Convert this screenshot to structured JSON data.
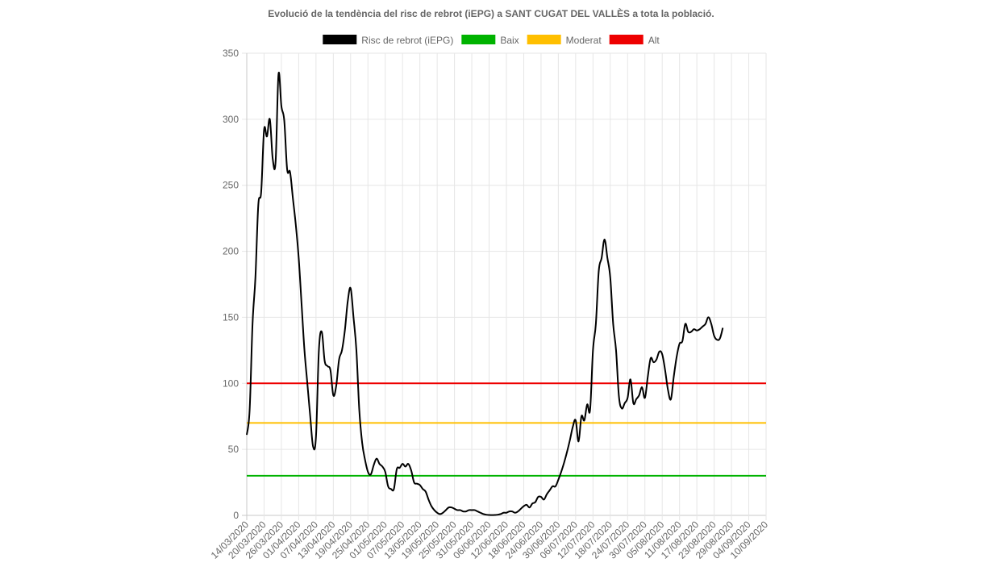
{
  "chart_data": {
    "type": "line",
    "title": "Evolució de la tendència del risc de rebrot (iEPG) a SANT CUGAT DEL VALLÈS a tota la població.",
    "xlabel": "",
    "ylabel": "",
    "ylim": [
      0,
      350
    ],
    "yticks": [
      0,
      50,
      100,
      150,
      200,
      250,
      300,
      350
    ],
    "x_tick_labels": [
      "14/03/2020",
      "20/03/2020",
      "26/03/2020",
      "01/04/2020",
      "07/04/2020",
      "13/04/2020",
      "19/04/2020",
      "25/04/2020",
      "01/05/2020",
      "07/05/2020",
      "13/05/2020",
      "19/05/2020",
      "25/05/2020",
      "31/05/2020",
      "06/06/2020",
      "12/06/2020",
      "18/06/2020",
      "24/06/2020",
      "30/06/2020",
      "06/07/2020",
      "12/07/2020",
      "18/07/2020",
      "24/07/2020",
      "30/07/2020",
      "05/08/2020",
      "11/08/2020",
      "17/08/2020",
      "23/08/2020",
      "29/08/2020",
      "04/09/2020",
      "10/09/2020"
    ],
    "grid": true,
    "legend_position": "top",
    "series": [
      {
        "name": "Risc de rebrot (iEPG)",
        "color": "#000000",
        "points": [
          [
            "14/03/2020",
            61
          ],
          [
            "15/03/2020",
            80
          ],
          [
            "16/03/2020",
            145
          ],
          [
            "17/03/2020",
            180
          ],
          [
            "18/03/2020",
            235
          ],
          [
            "19/03/2020",
            245
          ],
          [
            "20/03/2020",
            292
          ],
          [
            "21/03/2020",
            287
          ],
          [
            "22/03/2020",
            300
          ],
          [
            "23/03/2020",
            270
          ],
          [
            "24/03/2020",
            268
          ],
          [
            "25/03/2020",
            334
          ],
          [
            "26/03/2020",
            310
          ],
          [
            "27/03/2020",
            299
          ],
          [
            "28/03/2020",
            262
          ],
          [
            "29/03/2020",
            260
          ],
          [
            "30/03/2020",
            240
          ],
          [
            "31/03/2020",
            220
          ],
          [
            "01/04/2020",
            195
          ],
          [
            "02/04/2020",
            160
          ],
          [
            "03/04/2020",
            125
          ],
          [
            "04/04/2020",
            100
          ],
          [
            "05/04/2020",
            75
          ],
          [
            "06/04/2020",
            52
          ],
          [
            "07/04/2020",
            60
          ],
          [
            "08/04/2020",
            125
          ],
          [
            "09/04/2020",
            139
          ],
          [
            "10/04/2020",
            117
          ],
          [
            "11/04/2020",
            113
          ],
          [
            "12/04/2020",
            110
          ],
          [
            "13/04/2020",
            91
          ],
          [
            "14/04/2020",
            98
          ],
          [
            "15/04/2020",
            118
          ],
          [
            "16/04/2020",
            125
          ],
          [
            "17/04/2020",
            140
          ],
          [
            "18/04/2020",
            162
          ],
          [
            "19/04/2020",
            172
          ],
          [
            "20/04/2020",
            150
          ],
          [
            "21/04/2020",
            125
          ],
          [
            "22/04/2020",
            80
          ],
          [
            "23/04/2020",
            55
          ],
          [
            "24/04/2020",
            42
          ],
          [
            "25/04/2020",
            33
          ],
          [
            "26/04/2020",
            31
          ],
          [
            "27/04/2020",
            38
          ],
          [
            "28/04/2020",
            43
          ],
          [
            "29/04/2020",
            39
          ],
          [
            "30/04/2020",
            37
          ],
          [
            "01/05/2020",
            33
          ],
          [
            "02/05/2020",
            22
          ],
          [
            "03/05/2020",
            20
          ],
          [
            "04/05/2020",
            20
          ],
          [
            "05/05/2020",
            35
          ],
          [
            "06/05/2020",
            36
          ],
          [
            "07/05/2020",
            39
          ],
          [
            "08/05/2020",
            37
          ],
          [
            "09/05/2020",
            39
          ],
          [
            "10/05/2020",
            34
          ],
          [
            "11/05/2020",
            25
          ],
          [
            "12/05/2020",
            24
          ],
          [
            "13/05/2020",
            23
          ],
          [
            "14/05/2020",
            20
          ],
          [
            "15/05/2020",
            18
          ],
          [
            "16/05/2020",
            12
          ],
          [
            "17/05/2020",
            7
          ],
          [
            "18/05/2020",
            4
          ],
          [
            "19/05/2020",
            2
          ],
          [
            "20/05/2020",
            1
          ],
          [
            "21/05/2020",
            2
          ],
          [
            "22/05/2020",
            4
          ],
          [
            "23/05/2020",
            6
          ],
          [
            "24/05/2020",
            6
          ],
          [
            "25/05/2020",
            5
          ],
          [
            "26/05/2020",
            4
          ],
          [
            "27/05/2020",
            4
          ],
          [
            "28/05/2020",
            3
          ],
          [
            "29/05/2020",
            3
          ],
          [
            "30/05/2020",
            4
          ],
          [
            "31/05/2020",
            4
          ],
          [
            "01/06/2020",
            4
          ],
          [
            "02/06/2020",
            3
          ],
          [
            "03/06/2020",
            2
          ],
          [
            "04/06/2020",
            1
          ],
          [
            "05/06/2020",
            0.5
          ],
          [
            "06/06/2020",
            0.3
          ],
          [
            "07/06/2020",
            0.2
          ],
          [
            "08/06/2020",
            0.3
          ],
          [
            "09/06/2020",
            0.5
          ],
          [
            "10/06/2020",
            1
          ],
          [
            "11/06/2020",
            2
          ],
          [
            "12/06/2020",
            2
          ],
          [
            "13/06/2020",
            3
          ],
          [
            "14/06/2020",
            3
          ],
          [
            "15/06/2020",
            2
          ],
          [
            "16/06/2020",
            3
          ],
          [
            "17/06/2020",
            5
          ],
          [
            "18/06/2020",
            7
          ],
          [
            "19/06/2020",
            8
          ],
          [
            "20/06/2020",
            6
          ],
          [
            "21/06/2020",
            9
          ],
          [
            "22/06/2020",
            10
          ],
          [
            "23/06/2020",
            14
          ],
          [
            "24/06/2020",
            14
          ],
          [
            "25/06/2020",
            12
          ],
          [
            "26/06/2020",
            16
          ],
          [
            "27/06/2020",
            19
          ],
          [
            "28/06/2020",
            22
          ],
          [
            "29/06/2020",
            22
          ],
          [
            "30/06/2020",
            27
          ],
          [
            "01/07/2020",
            33
          ],
          [
            "02/07/2020",
            40
          ],
          [
            "03/07/2020",
            48
          ],
          [
            "04/07/2020",
            57
          ],
          [
            "05/07/2020",
            67
          ],
          [
            "06/07/2020",
            72
          ],
          [
            "07/07/2020",
            56
          ],
          [
            "08/07/2020",
            75
          ],
          [
            "09/07/2020",
            72
          ],
          [
            "10/07/2020",
            84
          ],
          [
            "11/07/2020",
            80
          ],
          [
            "12/07/2020",
            125
          ],
          [
            "13/07/2020",
            145
          ],
          [
            "14/07/2020",
            185
          ],
          [
            "15/07/2020",
            195
          ],
          [
            "16/07/2020",
            209
          ],
          [
            "17/07/2020",
            195
          ],
          [
            "18/07/2020",
            180
          ],
          [
            "19/07/2020",
            145
          ],
          [
            "20/07/2020",
            125
          ],
          [
            "21/07/2020",
            90
          ],
          [
            "22/07/2020",
            81
          ],
          [
            "23/07/2020",
            85
          ],
          [
            "24/07/2020",
            89
          ],
          [
            "25/07/2020",
            103
          ],
          [
            "26/07/2020",
            85
          ],
          [
            "27/07/2020",
            88
          ],
          [
            "28/07/2020",
            91
          ],
          [
            "29/07/2020",
            97
          ],
          [
            "30/07/2020",
            89
          ],
          [
            "31/07/2020",
            105
          ],
          [
            "01/08/2020",
            119
          ],
          [
            "02/08/2020",
            116
          ],
          [
            "03/08/2020",
            118
          ],
          [
            "04/08/2020",
            124
          ],
          [
            "05/08/2020",
            122
          ],
          [
            "06/08/2020",
            110
          ],
          [
            "07/08/2020",
            95
          ],
          [
            "08/08/2020",
            88
          ],
          [
            "09/08/2020",
            105
          ],
          [
            "10/08/2020",
            120
          ],
          [
            "11/08/2020",
            130
          ],
          [
            "12/08/2020",
            132
          ],
          [
            "13/08/2020",
            145
          ],
          [
            "14/08/2020",
            139
          ],
          [
            "15/08/2020",
            139
          ],
          [
            "16/08/2020",
            141
          ],
          [
            "17/08/2020",
            140
          ],
          [
            "18/08/2020",
            141
          ],
          [
            "19/08/2020",
            143
          ],
          [
            "20/08/2020",
            145
          ],
          [
            "21/08/2020",
            150
          ],
          [
            "22/08/2020",
            145
          ],
          [
            "23/08/2020",
            136
          ],
          [
            "24/08/2020",
            133
          ],
          [
            "25/08/2020",
            134
          ],
          [
            "26/08/2020",
            142
          ]
        ]
      },
      {
        "name": "Baix",
        "color": "#00b300",
        "constant": 30
      },
      {
        "name": "Moderat",
        "color": "#ffbf00",
        "constant": 70
      },
      {
        "name": "Alt",
        "color": "#ee0000",
        "constant": 100
      }
    ]
  }
}
